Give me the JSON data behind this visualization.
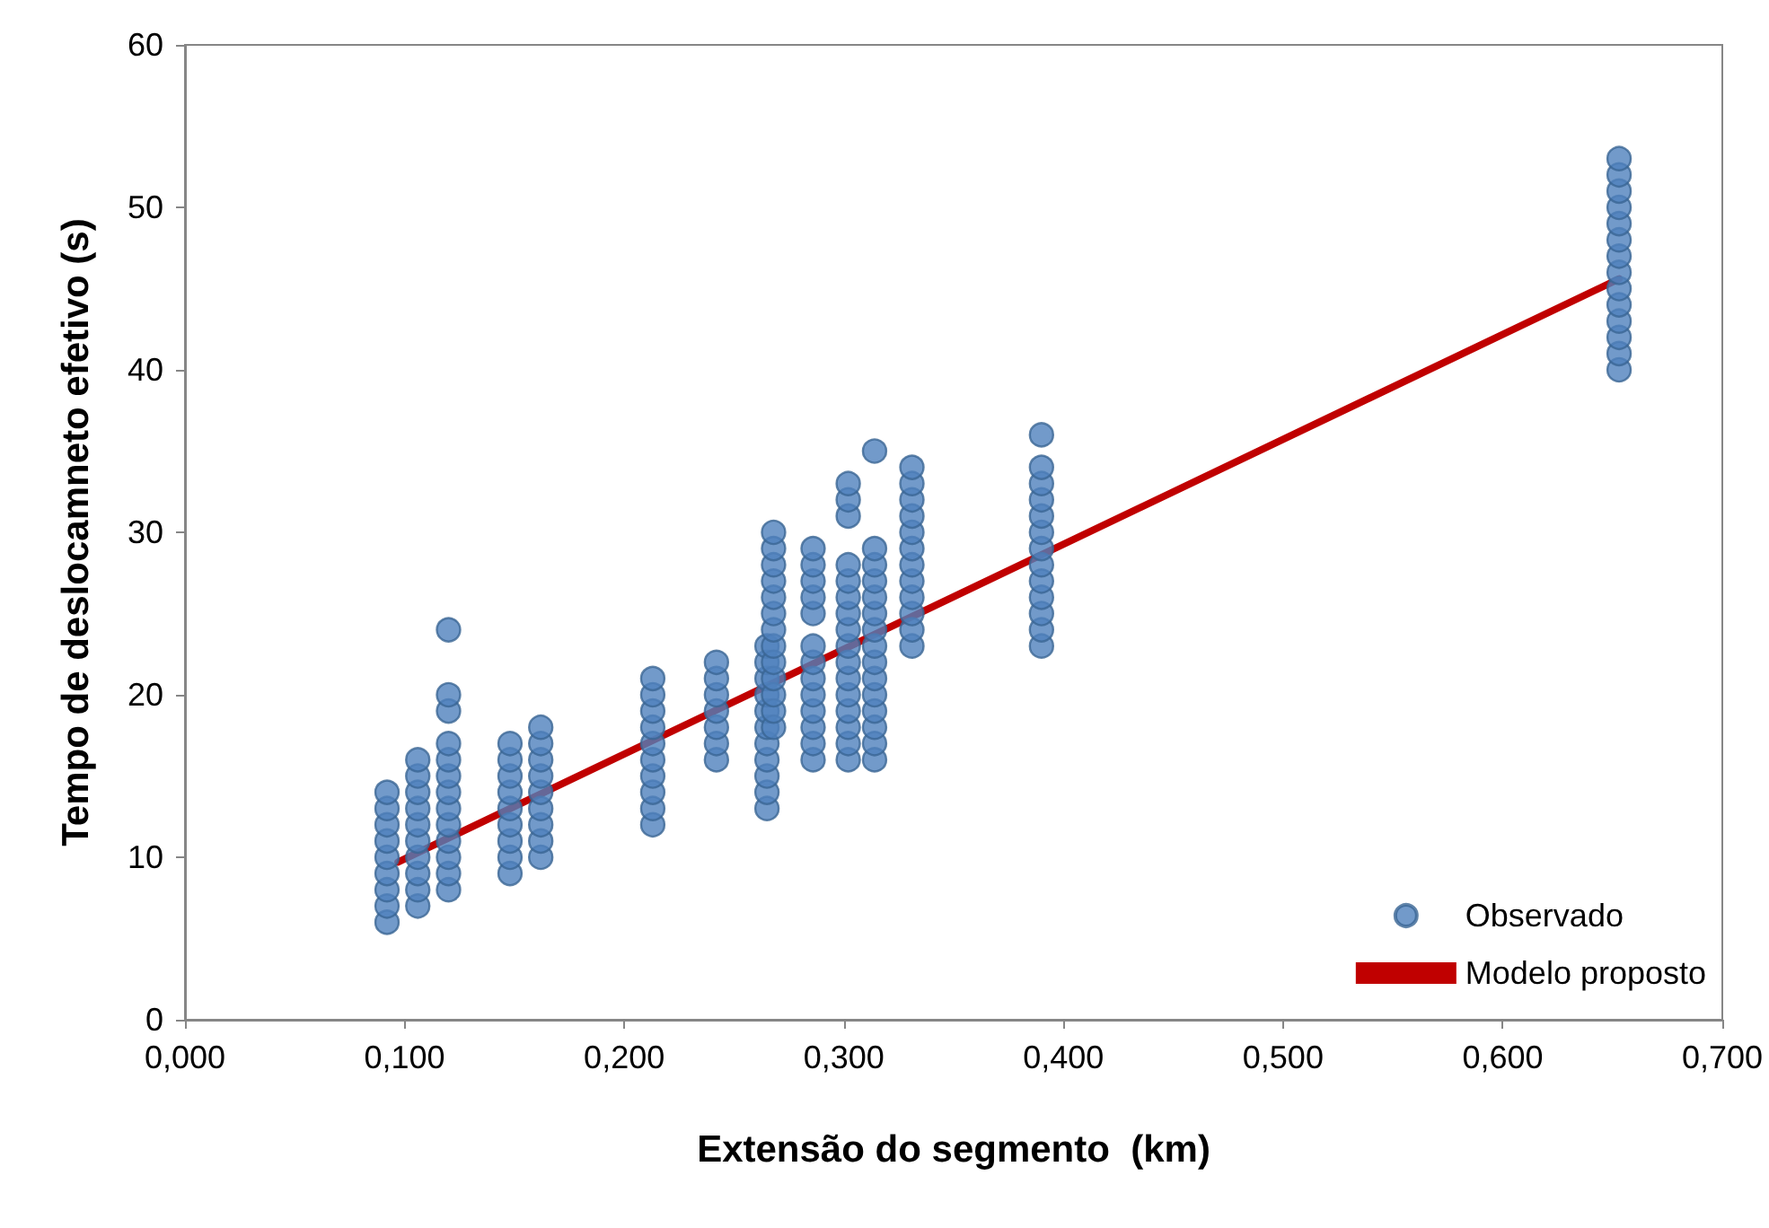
{
  "chart_data": {
    "type": "scatter",
    "xlabel": "Extensão do segmento  (km)",
    "ylabel": "Tempo de deslocamneto efetivo (s)",
    "xlim": [
      0,
      0.7
    ],
    "xticks": [
      {
        "value": 0,
        "label": "0,000"
      },
      {
        "value": 0.1,
        "label": "0,100"
      },
      {
        "value": 0.2,
        "label": "0,200"
      },
      {
        "value": 0.3,
        "label": "0,300"
      },
      {
        "value": 0.4,
        "label": "0,400"
      },
      {
        "value": 0.5,
        "label": "0,500"
      },
      {
        "value": 0.6,
        "label": "0,600"
      },
      {
        "value": 0.7,
        "label": "0,700"
      }
    ],
    "ylim": [
      0,
      60
    ],
    "yticks": [
      0,
      10,
      20,
      30,
      40,
      50,
      60
    ],
    "grid": false,
    "legend": "bottom right",
    "marker": "circle",
    "series": [
      {
        "name": "Observado",
        "color": "#4f81bd",
        "x": [
          0.092,
          0.092,
          0.092,
          0.092,
          0.092,
          0.092,
          0.092,
          0.092,
          0.092,
          0.106,
          0.106,
          0.106,
          0.106,
          0.106,
          0.106,
          0.106,
          0.106,
          0.106,
          0.106,
          0.12,
          0.12,
          0.12,
          0.12,
          0.12,
          0.12,
          0.12,
          0.12,
          0.12,
          0.12,
          0.12,
          0.12,
          0.12,
          0.148,
          0.148,
          0.148,
          0.148,
          0.148,
          0.148,
          0.148,
          0.148,
          0.148,
          0.162,
          0.162,
          0.162,
          0.162,
          0.162,
          0.162,
          0.162,
          0.162,
          0.162,
          0.213,
          0.213,
          0.213,
          0.213,
          0.213,
          0.213,
          0.213,
          0.213,
          0.213,
          0.213,
          0.242,
          0.242,
          0.242,
          0.242,
          0.242,
          0.242,
          0.242,
          0.265,
          0.265,
          0.265,
          0.265,
          0.265,
          0.265,
          0.265,
          0.265,
          0.265,
          0.265,
          0.265,
          0.268,
          0.268,
          0.268,
          0.268,
          0.268,
          0.268,
          0.268,
          0.268,
          0.268,
          0.268,
          0.268,
          0.268,
          0.268,
          0.286,
          0.286,
          0.286,
          0.286,
          0.286,
          0.286,
          0.286,
          0.286,
          0.286,
          0.286,
          0.286,
          0.286,
          0.286,
          0.302,
          0.302,
          0.302,
          0.302,
          0.302,
          0.302,
          0.302,
          0.302,
          0.302,
          0.302,
          0.302,
          0.302,
          0.302,
          0.302,
          0.302,
          0.302,
          0.314,
          0.314,
          0.314,
          0.314,
          0.314,
          0.314,
          0.314,
          0.314,
          0.314,
          0.314,
          0.314,
          0.314,
          0.314,
          0.314,
          0.314,
          0.331,
          0.331,
          0.331,
          0.331,
          0.331,
          0.331,
          0.331,
          0.331,
          0.331,
          0.331,
          0.331,
          0.331,
          0.39,
          0.39,
          0.39,
          0.39,
          0.39,
          0.39,
          0.39,
          0.39,
          0.39,
          0.39,
          0.39,
          0.39,
          0.39,
          0.653,
          0.653,
          0.653,
          0.653,
          0.653,
          0.653,
          0.653,
          0.653,
          0.653,
          0.653,
          0.653,
          0.653,
          0.653,
          0.653
        ],
        "values": [
          6,
          7,
          8,
          9,
          10,
          11,
          12,
          13,
          14,
          7,
          8,
          9,
          10,
          11,
          12,
          13,
          14,
          15,
          16,
          8,
          9,
          10,
          11,
          12,
          13,
          14,
          15,
          16,
          17,
          19,
          20,
          24,
          9,
          10,
          11,
          12,
          13,
          14,
          15,
          16,
          17,
          10,
          11,
          12,
          13,
          14,
          15,
          16,
          17,
          18,
          12,
          13,
          14,
          15,
          16,
          17,
          18,
          19,
          20,
          21,
          16,
          17,
          18,
          19,
          20,
          21,
          22,
          13,
          14,
          15,
          16,
          17,
          18,
          19,
          20,
          21,
          22,
          23,
          18,
          19,
          20,
          21,
          22,
          23,
          24,
          25,
          26,
          27,
          28,
          29,
          30,
          16,
          17,
          18,
          19,
          20,
          21,
          22,
          23,
          25,
          26,
          27,
          28,
          29,
          16,
          17,
          18,
          19,
          20,
          21,
          22,
          23,
          24,
          25,
          26,
          27,
          28,
          31,
          32,
          33,
          16,
          17,
          18,
          19,
          20,
          21,
          22,
          23,
          24,
          25,
          26,
          27,
          28,
          29,
          35,
          23,
          24,
          25,
          26,
          27,
          28,
          29,
          30,
          31,
          32,
          33,
          34,
          23,
          24,
          25,
          26,
          27,
          28,
          29,
          30,
          31,
          32,
          33,
          34,
          36,
          40,
          41,
          42,
          43,
          44,
          45,
          46,
          47,
          48,
          49,
          50,
          51,
          52,
          53
        ]
      },
      {
        "name": "Modelo proposto",
        "type": "line",
        "color": "#c00000",
        "marker": "none",
        "line_style": "solid",
        "x": [
          0.097,
          0.653
        ],
        "values": [
          9.7,
          45.6
        ]
      }
    ]
  }
}
